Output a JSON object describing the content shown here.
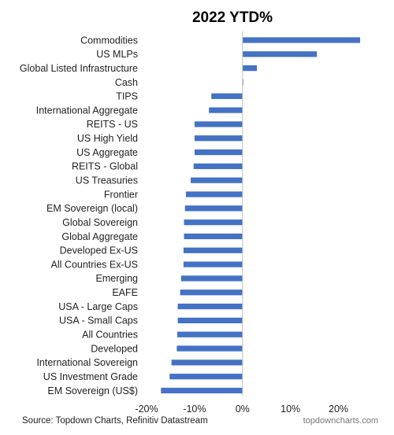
{
  "colors": {
    "bar": "#4472C4",
    "axis": "#bfbfbf",
    "text": "#222222"
  },
  "chart_data": {
    "type": "bar",
    "orientation": "horizontal",
    "title": "2022 YTD%",
    "categories": [
      "Commodities",
      "US MLPs",
      "Global Listed Infrastructure",
      "Cash",
      "TIPS",
      "International Aggregate",
      "REITS - US",
      "US High Yield",
      "US Aggregate",
      "REITS - Global",
      "US Treasuries",
      "Frontier",
      "EM Sovereign (local)",
      "Global Sovereign",
      "Global Aggregate",
      "Developed Ex-US",
      "All Countries Ex-US",
      "Emerging",
      "EAFE",
      "USA - Large Caps",
      "USA - Small Caps",
      "All Countries",
      "Developed",
      "International Sovereign",
      "US Investment Grade",
      "EM Sovereign (US$)"
    ],
    "values": [
      24.5,
      15.5,
      3.0,
      0.1,
      -6.5,
      -7.0,
      -10.0,
      -10.0,
      -10.0,
      -10.2,
      -10.8,
      -11.8,
      -12.0,
      -12.2,
      -12.2,
      -12.3,
      -12.3,
      -12.8,
      -13.0,
      -13.5,
      -13.5,
      -13.6,
      -13.7,
      -14.8,
      -15.2,
      -17.0
    ],
    "xlim": [
      -20,
      25
    ],
    "xticks": [
      -20,
      -10,
      0,
      10,
      20
    ],
    "xtick_labels": [
      "-20%",
      "-10%",
      "0%",
      "10%",
      "20%"
    ],
    "xlabel": "",
    "ylabel": "",
    "grid": false,
    "legend": "none"
  },
  "footer": {
    "source": "Source: Topdown Charts, Refinitiv Datastream",
    "watermark": "topdowncharts.com"
  }
}
